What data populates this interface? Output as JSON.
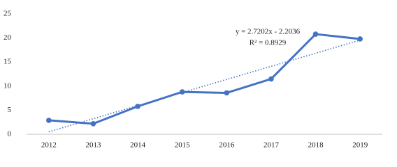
{
  "chart_data": {
    "type": "line",
    "categories": [
      "2012",
      "2013",
      "2014",
      "2015",
      "2016",
      "2017",
      "2018",
      "2019"
    ],
    "series": [
      {
        "color": "#4472c4",
        "values": [
          2.9,
          2.2,
          5.8,
          8.8,
          8.6,
          11.5,
          20.8,
          19.8
        ]
      }
    ],
    "ylim": [
      0,
      25
    ],
    "yticks": [
      0,
      5,
      10,
      15,
      20,
      25
    ],
    "grid": false,
    "trendline": {
      "slope": 2.7202,
      "intercept": -2.2036,
      "color": "#4472c4",
      "label": "y = 2.7202x - 2.2036",
      "r2_label": "R² = 0.8929"
    }
  }
}
